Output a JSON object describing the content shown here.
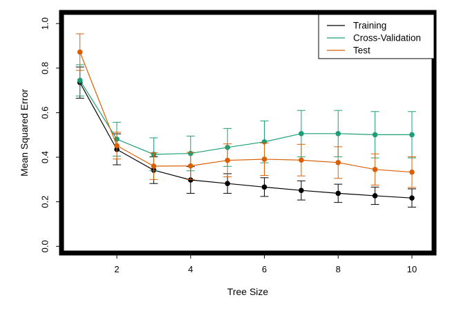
{
  "chart_data": {
    "type": "line",
    "title": "",
    "xlabel": "Tree Size",
    "ylabel": "Mean Squared Error",
    "xlim": [
      0.5,
      10.6
    ],
    "ylim": [
      -0.03,
      1.05
    ],
    "xticks": [
      2,
      4,
      6,
      8,
      10
    ],
    "yticks": [
      0.0,
      0.2,
      0.4,
      0.6,
      0.8,
      1.0
    ],
    "xtick_labels": [
      "2",
      "4",
      "6",
      "8",
      "10"
    ],
    "ytick_labels": [
      "0.0",
      "0.2",
      "0.4",
      "0.6",
      "0.8",
      "1.0"
    ],
    "legend_position": "top-right",
    "x": [
      1,
      2,
      3,
      4,
      5,
      6,
      7,
      8,
      9,
      10
    ],
    "series": [
      {
        "name": "Training",
        "color": "#000000",
        "values": [
          0.735,
          0.435,
          0.342,
          0.298,
          0.282,
          0.266,
          0.251,
          0.238,
          0.227,
          0.217
        ],
        "err_low": [
          0.665,
          0.366,
          0.282,
          0.238,
          0.238,
          0.224,
          0.208,
          0.197,
          0.188,
          0.176
        ],
        "err_high": [
          0.805,
          0.505,
          0.402,
          0.358,
          0.326,
          0.308,
          0.294,
          0.279,
          0.266,
          0.258
        ]
      },
      {
        "name": "Cross-Validation",
        "color": "#1b9e77",
        "values": [
          0.745,
          0.481,
          0.413,
          0.417,
          0.444,
          0.469,
          0.506,
          0.506,
          0.501,
          0.501
        ],
        "err_low": [
          0.675,
          0.405,
          0.339,
          0.339,
          0.359,
          0.375,
          0.402,
          0.402,
          0.397,
          0.397
        ],
        "err_high": [
          0.815,
          0.557,
          0.487,
          0.495,
          0.529,
          0.563,
          0.61,
          0.61,
          0.605,
          0.605
        ]
      },
      {
        "name": "Test",
        "color": "#d95f02",
        "values": [
          0.872,
          0.452,
          0.36,
          0.361,
          0.386,
          0.391,
          0.387,
          0.376,
          0.345,
          0.333
        ],
        "err_low": [
          0.79,
          0.392,
          0.3,
          0.3,
          0.312,
          0.318,
          0.316,
          0.305,
          0.275,
          0.264
        ],
        "err_high": [
          0.954,
          0.512,
          0.42,
          0.422,
          0.46,
          0.464,
          0.458,
          0.447,
          0.415,
          0.402
        ]
      }
    ]
  }
}
